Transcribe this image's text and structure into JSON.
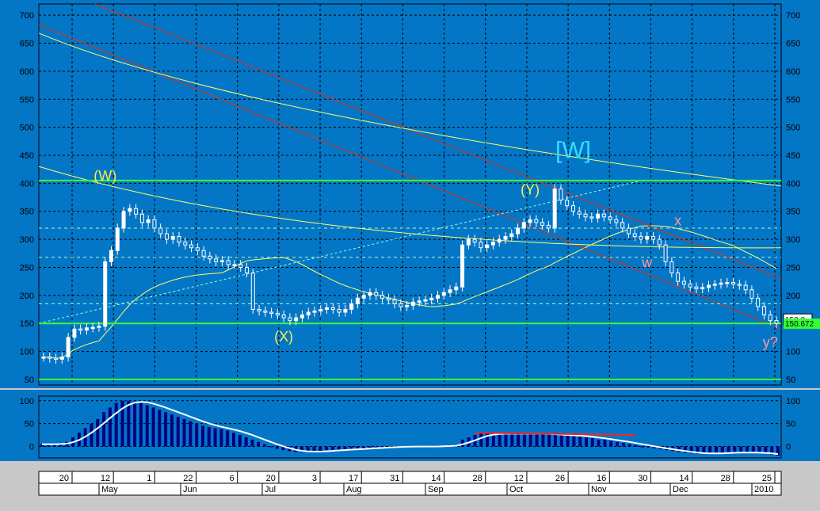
{
  "colors": {
    "background": "#0476c6",
    "grid": "#000000",
    "candle": "#ffffff",
    "ma_yellow": "#ffff66",
    "channel_red": "#c0392b",
    "hline_green": "#33ff33",
    "fib_cyan": "#a6ffd6",
    "wave_yellow": "#ffee44",
    "wave_pink": "#ff9aa0",
    "wave_cyan": "#33ddff",
    "oscillator_bar": "#000080",
    "oscillator_line": "#ffffff",
    "oscillator_red": "#ff2020"
  },
  "chart_data": [
    {
      "type": "candlestick",
      "ylim": [
        40,
        720
      ],
      "y_ticks": [
        50,
        100,
        150,
        200,
        250,
        300,
        350,
        400,
        450,
        500,
        550,
        600,
        650,
        700
      ],
      "grid": true,
      "price_labels": {
        "last": "150.0",
        "marker": "150.672"
      },
      "closes": [
        90,
        88,
        86,
        90,
        125,
        140,
        138,
        142,
        143,
        145,
        260,
        280,
        320,
        350,
        355,
        345,
        330,
        335,
        320,
        310,
        300,
        305,
        295,
        290,
        285,
        280,
        270,
        265,
        260,
        262,
        255,
        255,
        250,
        240,
        175,
        172,
        170,
        168,
        165,
        160,
        155,
        160,
        165,
        170,
        172,
        175,
        178,
        175,
        170,
        175,
        185,
        195,
        200,
        205,
        200,
        195,
        192,
        185,
        180,
        182,
        188,
        190,
        192,
        195,
        200,
        205,
        210,
        215,
        290,
        300,
        295,
        285,
        290,
        295,
        300,
        305,
        310,
        320,
        330,
        335,
        330,
        325,
        320,
        390,
        370,
        360,
        350,
        345,
        340,
        338,
        345,
        340,
        335,
        330,
        320,
        310,
        305,
        300,
        305,
        300,
        290,
        260,
        240,
        225,
        220,
        215,
        212,
        214,
        218,
        220,
        222,
        223,
        220,
        218,
        210,
        195,
        180,
        165,
        155,
        150
      ],
      "horizontal_lines": [
        405,
        150,
        50
      ],
      "labels": [
        {
          "text": "(W)",
          "price": 405,
          "day_index": 10,
          "color": "wave_yellow"
        },
        {
          "text": "(X)",
          "price": 118,
          "day_index": 39,
          "color": "wave_yellow"
        },
        {
          "text": "(Y)",
          "price": 380,
          "day_index": 79,
          "color": "wave_yellow"
        },
        {
          "text": "[W]",
          "price": 445,
          "day_index": 86,
          "color": "wave_cyan"
        },
        {
          "text": "x",
          "price": 325,
          "day_index": 103,
          "color": "wave_pink"
        },
        {
          "text": "w",
          "price": 250,
          "day_index": 98,
          "color": "wave_pink"
        },
        {
          "text": "y?",
          "price": 108,
          "day_index": 118,
          "color": "wave_pink"
        }
      ]
    },
    {
      "type": "bar",
      "ylim": [
        -25,
        110
      ],
      "y_ticks": [
        0,
        50,
        100
      ],
      "grid": true,
      "oscillator": [
        5,
        5,
        5,
        6,
        10,
        20,
        30,
        40,
        50,
        60,
        75,
        85,
        95,
        100,
        100,
        98,
        95,
        90,
        85,
        80,
        75,
        70,
        65,
        60,
        55,
        50,
        45,
        42,
        40,
        38,
        35,
        30,
        25,
        20,
        15,
        10,
        5,
        0,
        -5,
        -8,
        -10,
        -12,
        -12,
        -12,
        -10,
        -10,
        -8,
        -8,
        -7,
        -6,
        -5,
        -5,
        -4,
        -3,
        -2,
        -2,
        -1,
        0,
        0,
        0,
        0,
        0,
        0,
        0,
        0,
        2,
        3,
        4,
        15,
        20,
        25,
        28,
        28,
        28,
        28,
        28,
        28,
        28,
        28,
        28,
        28,
        27,
        26,
        25,
        24,
        24,
        23,
        22,
        20,
        18,
        15,
        15,
        12,
        10,
        8,
        5,
        3,
        0,
        -2,
        -4,
        -6,
        -8,
        -10,
        -12,
        -14,
        -15,
        -16,
        -16,
        -15,
        -14,
        -14,
        -13,
        -13,
        -13,
        -13,
        -14,
        -15,
        -16,
        -18,
        -20
      ]
    }
  ],
  "time_axis": {
    "day_ticks": [
      "20",
      "12",
      "1",
      "22",
      "6",
      "20",
      "3",
      "17",
      "31",
      "14",
      "28",
      "12",
      "26",
      "16",
      "30",
      "14",
      "28",
      "25"
    ],
    "months": [
      "May",
      "Jun",
      "Jul",
      "Aug",
      "Sep",
      "Oct",
      "Nov",
      "Dec",
      "2010"
    ]
  }
}
